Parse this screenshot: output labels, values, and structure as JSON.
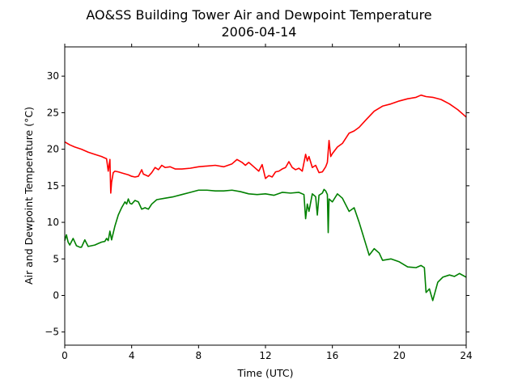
{
  "chart_data": {
    "type": "line",
    "title": "AO&SS Building Tower Air and Dewpoint Temperature",
    "subtitle": "2006-04-14",
    "xlabel": "Time (UTC)",
    "ylabel": "Air and Dewpoint Temperature (°C)",
    "xlim": [
      0,
      24
    ],
    "ylim": [
      -6.8,
      34
    ],
    "x_ticks": [
      0,
      4,
      8,
      12,
      16,
      20,
      24
    ],
    "x_tick_labels": [
      "0",
      "4",
      "8",
      "12",
      "16",
      "20",
      "24"
    ],
    "y_ticks": [
      -5,
      0,
      5,
      10,
      15,
      20,
      25,
      30
    ],
    "y_tick_labels": [
      "−5",
      "0",
      "5",
      "10",
      "15",
      "20",
      "25",
      "30"
    ],
    "grid": false,
    "series": [
      {
        "color": "#ff0000",
        "x": [
          0.0,
          0.3,
          0.6,
          1.0,
          1.4,
          1.8,
          2.2,
          2.5,
          2.6,
          2.7,
          2.75,
          2.8,
          2.9,
          3.0,
          3.2,
          3.5,
          3.8,
          4.0,
          4.2,
          4.4,
          4.6,
          4.7,
          4.8,
          5.0,
          5.2,
          5.4,
          5.6,
          5.8,
          6.0,
          6.3,
          6.6,
          7.0,
          7.5,
          8.0,
          8.5,
          9.0,
          9.5,
          10.0,
          10.3,
          10.6,
          10.8,
          11.0,
          11.3,
          11.6,
          11.8,
          12.0,
          12.2,
          12.4,
          12.6,
          12.8,
          13.0,
          13.2,
          13.4,
          13.6,
          13.8,
          14.0,
          14.2,
          14.4,
          14.5,
          14.6,
          14.8,
          15.0,
          15.2,
          15.4,
          15.6,
          15.7,
          15.8,
          15.9,
          16.0,
          16.3,
          16.6,
          17.0,
          17.3,
          17.6,
          18.0,
          18.5,
          19.0,
          19.5,
          20.0,
          20.5,
          21.0,
          21.3,
          21.6,
          22.0,
          22.5,
          23.0,
          23.5,
          24.0
        ],
        "values": [
          21.0,
          20.6,
          20.3,
          20.0,
          19.6,
          19.3,
          19.0,
          18.7,
          17.0,
          18.6,
          14.0,
          15.5,
          16.8,
          17.0,
          16.9,
          16.7,
          16.5,
          16.3,
          16.2,
          16.3,
          17.2,
          16.6,
          16.5,
          16.3,
          16.8,
          17.5,
          17.2,
          17.8,
          17.5,
          17.6,
          17.3,
          17.3,
          17.4,
          17.6,
          17.7,
          17.8,
          17.6,
          18.0,
          18.6,
          18.2,
          17.8,
          18.2,
          17.6,
          17.0,
          17.9,
          16.0,
          16.4,
          16.2,
          16.9,
          17.0,
          17.3,
          17.5,
          18.3,
          17.5,
          17.2,
          17.4,
          17.0,
          19.3,
          18.4,
          19.0,
          17.5,
          17.8,
          16.8,
          16.9,
          17.6,
          18.2,
          21.2,
          19.0,
          19.4,
          20.3,
          20.8,
          22.2,
          22.5,
          23.0,
          24.0,
          25.2,
          25.9,
          26.2,
          26.6,
          26.9,
          27.1,
          27.4,
          27.2,
          27.1,
          26.8,
          26.2,
          25.4,
          24.4
        ]
      },
      {
        "color": "#008000",
        "x": [
          0.0,
          0.1,
          0.2,
          0.3,
          0.5,
          0.7,
          0.9,
          1.0,
          1.2,
          1.4,
          1.6,
          1.8,
          2.0,
          2.2,
          2.4,
          2.5,
          2.6,
          2.7,
          2.8,
          3.0,
          3.2,
          3.4,
          3.6,
          3.7,
          3.8,
          3.9,
          4.0,
          4.2,
          4.4,
          4.6,
          4.8,
          5.0,
          5.2,
          5.5,
          6.0,
          6.5,
          7.0,
          7.5,
          8.0,
          8.5,
          9.0,
          9.5,
          10.0,
          10.5,
          11.0,
          11.5,
          12.0,
          12.5,
          13.0,
          13.5,
          14.0,
          14.3,
          14.4,
          14.5,
          14.6,
          14.8,
          15.0,
          15.1,
          15.2,
          15.4,
          15.5,
          15.6,
          15.7,
          15.75,
          15.8,
          16.0,
          16.3,
          16.6,
          17.0,
          17.3,
          17.6,
          17.8,
          18.0,
          18.2,
          18.5,
          18.8,
          19.0,
          19.5,
          20.0,
          20.5,
          21.0,
          21.3,
          21.5,
          21.6,
          21.8,
          22.0,
          22.3,
          22.6,
          23.0,
          23.3,
          23.6,
          24.0
        ],
        "values": [
          7.5,
          8.3,
          7.3,
          6.9,
          7.8,
          6.8,
          6.6,
          6.6,
          7.6,
          6.7,
          6.8,
          6.9,
          7.1,
          7.3,
          7.4,
          7.8,
          7.5,
          8.8,
          7.6,
          9.5,
          11.0,
          12.0,
          12.8,
          12.5,
          13.2,
          12.6,
          12.5,
          13.0,
          12.8,
          11.8,
          12.0,
          11.8,
          12.5,
          13.1,
          13.3,
          13.5,
          13.8,
          14.1,
          14.4,
          14.4,
          14.3,
          14.3,
          14.4,
          14.2,
          13.9,
          13.8,
          13.9,
          13.7,
          14.1,
          14.0,
          14.1,
          13.8,
          10.5,
          12.5,
          11.5,
          13.9,
          13.5,
          11.0,
          13.7,
          14.0,
          14.5,
          14.3,
          13.8,
          8.6,
          13.2,
          12.8,
          13.9,
          13.3,
          11.5,
          12.0,
          10.0,
          8.5,
          7.0,
          5.5,
          6.4,
          5.8,
          4.8,
          5.0,
          4.6,
          3.9,
          3.8,
          4.1,
          3.8,
          0.4,
          0.9,
          -0.7,
          1.8,
          2.5,
          2.8,
          2.6,
          3.0,
          2.5
        ]
      }
    ]
  }
}
